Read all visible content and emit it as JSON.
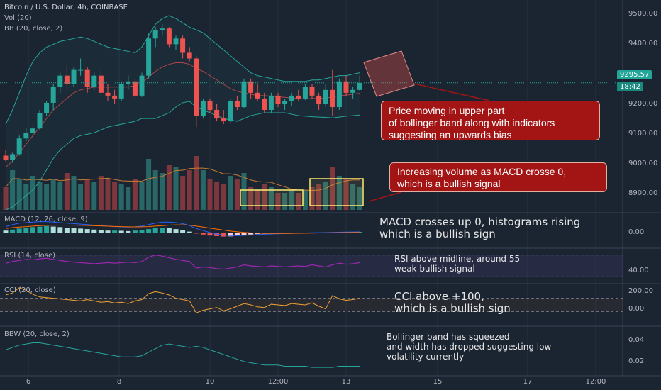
{
  "header": {
    "symbol": "Bitcoin / U.S. Dollar, 4h, COINBASE",
    "vol": "Vol (20)",
    "bb": "BB (20, close, 2)"
  },
  "price_axis": {
    "ticks": [
      "9500.00",
      "9400.00",
      "9200.00",
      "9100.00",
      "9000.00",
      "8900.00"
    ],
    "current_price": "9295.57",
    "countdown": "18:42"
  },
  "panes": {
    "macd": {
      "label": "MACD (12, 26, close, 9)",
      "tick": "0.00"
    },
    "rsi": {
      "label": "RSI (14, close)",
      "tick": "40.00"
    },
    "cci": {
      "label": "CCI (20, close)",
      "ticks": [
        "200.00",
        "0.00"
      ]
    },
    "bbw": {
      "label": "BBW (20, close, 2)",
      "ticks": [
        "0.04",
        "0.02"
      ]
    }
  },
  "time_axis": [
    "6",
    "8",
    "10",
    "12:00",
    "13",
    "15",
    "17",
    "12:00"
  ],
  "annotations": {
    "price": [
      "Price moving in upper part",
      "of bollinger band along with indicators",
      "suggesting an upwards bias"
    ],
    "volume": [
      "Increasing volume as MACD crosse 0,",
      "which is a bullish signal"
    ],
    "macd": [
      "MACD crosses up 0, histograms rising",
      "which is a bullish sign"
    ],
    "rsi": [
      "RSI above midline, around 55",
      "weak bullish signal"
    ],
    "cci": [
      "CCI above +100,",
      "which is a bullish sign"
    ],
    "bbw": [
      "Bollinger band has squeezed",
      "and width has dropped suggesting low",
      "volatility currently"
    ]
  },
  "colors": {
    "background": "#1b2431",
    "up": "#26a69a",
    "down": "#ef5350",
    "bb_band": "#26a69a",
    "bb_basis": "#ef5350",
    "rsi_line": "#9c27b0",
    "cci_line": "#f0a030",
    "callout_bg": "#a31515",
    "highlight": "#ffeb70"
  },
  "chart_data": [
    {
      "type": "candlestick",
      "title": "Bitcoin / U.S. Dollar, 4h, COINBASE",
      "ylim": [
        8850,
        9560
      ],
      "x_ticks": [
        "6",
        "8",
        "10",
        "12:00",
        "13",
        "15",
        "17",
        "12:00"
      ],
      "ohlc": [
        [
          9040,
          9060,
          9020,
          9025
        ],
        [
          9025,
          9050,
          9015,
          9045
        ],
        [
          9045,
          9110,
          9040,
          9100
        ],
        [
          9100,
          9135,
          9090,
          9120
        ],
        [
          9120,
          9145,
          9100,
          9135
        ],
        [
          9135,
          9200,
          9130,
          9190
        ],
        [
          9190,
          9230,
          9180,
          9225
        ],
        [
          9225,
          9290,
          9200,
          9280
        ],
        [
          9280,
          9330,
          9260,
          9320
        ],
        [
          9320,
          9360,
          9270,
          9290
        ],
        [
          9290,
          9350,
          9280,
          9340
        ],
        [
          9340,
          9380,
          9320,
          9340
        ],
        [
          9340,
          9350,
          9260,
          9280
        ],
        [
          9280,
          9330,
          9270,
          9320
        ],
        [
          9320,
          9340,
          9250,
          9260
        ],
        [
          9260,
          9290,
          9230,
          9250
        ],
        [
          9250,
          9270,
          9220,
          9240
        ],
        [
          9240,
          9300,
          9230,
          9290
        ],
        [
          9290,
          9320,
          9270,
          9300
        ],
        [
          9300,
          9310,
          9240,
          9250
        ],
        [
          9250,
          9330,
          9245,
          9320
        ],
        [
          9320,
          9470,
          9310,
          9450
        ],
        [
          9450,
          9490,
          9420,
          9480
        ],
        [
          9480,
          9500,
          9460,
          9485
        ],
        [
          9485,
          9490,
          9420,
          9430
        ],
        [
          9430,
          9460,
          9410,
          9450
        ],
        [
          9450,
          9460,
          9380,
          9400
        ],
        [
          9400,
          9420,
          9370,
          9380
        ],
        [
          9380,
          9390,
          9140,
          9180
        ],
        [
          9180,
          9240,
          9170,
          9230
        ],
        [
          9230,
          9240,
          9190,
          9200
        ],
        [
          9200,
          9220,
          9160,
          9170
        ],
        [
          9170,
          9200,
          9150,
          9160
        ],
        [
          9160,
          9240,
          9155,
          9230
        ],
        [
          9230,
          9250,
          9200,
          9210
        ],
        [
          9210,
          9310,
          9205,
          9300
        ],
        [
          9300,
          9310,
          9240,
          9260
        ],
        [
          9260,
          9290,
          9230,
          9240
        ],
        [
          9240,
          9260,
          9190,
          9200
        ],
        [
          9200,
          9260,
          9190,
          9250
        ],
        [
          9250,
          9260,
          9210,
          9220
        ],
        [
          9220,
          9240,
          9200,
          9230
        ],
        [
          9230,
          9260,
          9215,
          9250
        ],
        [
          9250,
          9270,
          9230,
          9240
        ],
        [
          9240,
          9290,
          9235,
          9280
        ],
        [
          9280,
          9290,
          9240,
          9250
        ],
        [
          9250,
          9260,
          9200,
          9220
        ],
        [
          9220,
          9290,
          9210,
          9270
        ],
        [
          9270,
          9340,
          9180,
          9210
        ],
        [
          9210,
          9310,
          9200,
          9300
        ],
        [
          9300,
          9320,
          9250,
          9260
        ],
        [
          9260,
          9280,
          9240,
          9270
        ],
        [
          9270,
          9320,
          9265,
          9295
        ]
      ],
      "volume": [
        40,
        70,
        55,
        45,
        60,
        50,
        45,
        55,
        50,
        65,
        60,
        45,
        55,
        50,
        60,
        55,
        50,
        45,
        40,
        55,
        50,
        90,
        70,
        65,
        80,
        75,
        60,
        70,
        95,
        70,
        55,
        50,
        45,
        60,
        55,
        65,
        40,
        35,
        45,
        40,
        30,
        30,
        35,
        30,
        35,
        40,
        45,
        50,
        75,
        60,
        55,
        45,
        40
      ],
      "bollinger": {
        "upper": [
          9150,
          9200,
          9260,
          9320,
          9370,
          9400,
          9420,
          9430,
          9440,
          9445,
          9450,
          9455,
          9450,
          9440,
          9430,
          9420,
          9415,
          9410,
          9405,
          9400,
          9420,
          9460,
          9500,
          9520,
          9530,
          9520,
          9505,
          9490,
          9480,
          9470,
          9450,
          9430,
          9410,
          9390,
          9370,
          9350,
          9330,
          9320,
          9315,
          9310,
          9305,
          9300,
          9300,
          9300,
          9300,
          9305,
          9305,
          9310,
          9315,
          9320,
          9320,
          9325,
          9330
        ],
        "basis": [
          9000,
          9020,
          9050,
          9080,
          9110,
          9140,
          9170,
          9200,
          9220,
          9240,
          9260,
          9270,
          9275,
          9280,
          9280,
          9280,
          9280,
          9280,
          9280,
          9285,
          9295,
          9315,
          9335,
          9350,
          9360,
          9365,
          9365,
          9360,
          9345,
          9335,
          9320,
          9305,
          9290,
          9275,
          9265,
          9260,
          9255,
          9250,
          9250,
          9248,
          9246,
          9244,
          9242,
          9240,
          9238,
          9240,
          9240,
          9242,
          9245,
          9250,
          9252,
          9255,
          9258
        ],
        "lower": [
          8850,
          8860,
          8880,
          8900,
          8920,
          8950,
          8990,
          9030,
          9060,
          9080,
          9100,
          9110,
          9115,
          9120,
          9130,
          9140,
          9145,
          9150,
          9155,
          9160,
          9170,
          9170,
          9170,
          9180,
          9190,
          9210,
          9225,
          9230,
          9210,
          9200,
          9190,
          9180,
          9170,
          9165,
          9160,
          9170,
          9180,
          9185,
          9190,
          9190,
          9190,
          9190,
          9185,
          9180,
          9178,
          9176,
          9175,
          9174,
          9172,
          9175,
          9178,
          9180,
          9182
        ]
      }
    },
    {
      "type": "bar",
      "title": "MACD (12, 26, close, 9)",
      "histogram": [
        0.2,
        0.3,
        0.4,
        0.5,
        0.55,
        0.6,
        0.65,
        0.6,
        0.55,
        0.5,
        0.45,
        0.4,
        0.35,
        0.3,
        0.25,
        0.2,
        0.2,
        0.18,
        0.15,
        0.2,
        0.25,
        0.35,
        0.45,
        0.5,
        0.45,
        0.35,
        0.25,
        0.1,
        -0.1,
        -0.2,
        -0.3,
        -0.35,
        -0.4,
        -0.38,
        -0.32,
        -0.25,
        -0.2,
        -0.15,
        -0.12,
        -0.1,
        -0.08,
        -0.06,
        -0.05,
        -0.04,
        -0.03,
        -0.02,
        -0.02,
        0,
        0.02,
        0.04,
        0.05,
        0.06,
        0.07
      ],
      "macd": [
        0.6,
        0.8,
        0.95,
        1.0,
        1.05,
        1.1,
        1.1,
        1.05,
        1.0,
        0.95,
        0.9,
        0.85,
        0.8,
        0.75,
        0.7,
        0.65,
        0.6,
        0.58,
        0.55,
        0.58,
        0.65,
        0.8,
        0.95,
        1.05,
        1.05,
        1.0,
        0.9,
        0.7,
        0.4,
        0.2,
        0.0,
        -0.15,
        -0.25,
        -0.3,
        -0.3,
        -0.28,
        -0.25,
        -0.2,
        -0.17,
        -0.14,
        -0.12,
        -0.1,
        -0.08,
        -0.06,
        -0.04,
        -0.02,
        -0.01,
        0.0,
        0.02,
        0.04,
        0.05,
        0.06,
        0.07
      ],
      "signal": [
        0.4,
        0.5,
        0.55,
        0.6,
        0.65,
        0.7,
        0.72,
        0.74,
        0.75,
        0.75,
        0.74,
        0.73,
        0.71,
        0.69,
        0.67,
        0.64,
        0.62,
        0.6,
        0.58,
        0.57,
        0.58,
        0.6,
        0.65,
        0.7,
        0.75,
        0.78,
        0.78,
        0.75,
        0.65,
        0.55,
        0.45,
        0.35,
        0.25,
        0.15,
        0.08,
        0.02,
        -0.03,
        -0.06,
        -0.08,
        -0.09,
        -0.09,
        -0.09,
        -0.08,
        -0.07,
        -0.06,
        -0.05,
        -0.04,
        -0.03,
        -0.02,
        -0.01,
        0.0,
        0.01,
        0.02
      ]
    },
    {
      "type": "line",
      "title": "RSI (14, close)",
      "ylim": [
        20,
        80
      ],
      "values": [
        55,
        58,
        60,
        62,
        61,
        63,
        64,
        62,
        60,
        58,
        57,
        56,
        55,
        54,
        55,
        56,
        55,
        56,
        57,
        56,
        58,
        66,
        70,
        68,
        65,
        62,
        60,
        58,
        46,
        48,
        47,
        45,
        44,
        46,
        48,
        52,
        50,
        49,
        48,
        50,
        49,
        48,
        49,
        50,
        49,
        52,
        50,
        48,
        52,
        55,
        53,
        54,
        56
      ]
    },
    {
      "type": "line",
      "title": "CCI (20, close)",
      "ylim": [
        -300,
        300
      ],
      "values": [
        150,
        180,
        260,
        220,
        160,
        120,
        110,
        100,
        90,
        80,
        70,
        60,
        80,
        60,
        40,
        50,
        30,
        40,
        20,
        60,
        80,
        170,
        200,
        180,
        150,
        100,
        80,
        60,
        -120,
        -80,
        -60,
        -40,
        -90,
        -60,
        -20,
        20,
        0,
        -30,
        -40,
        10,
        0,
        -10,
        20,
        10,
        0,
        30,
        -20,
        -60,
        140,
        90,
        70,
        80,
        100
      ]
    },
    {
      "type": "line",
      "title": "BBW (20, close, 2)",
      "ylim": [
        0.01,
        0.05
      ],
      "values": [
        0.031,
        0.033,
        0.035,
        0.036,
        0.037,
        0.037,
        0.036,
        0.035,
        0.034,
        0.033,
        0.032,
        0.031,
        0.03,
        0.029,
        0.028,
        0.027,
        0.026,
        0.025,
        0.025,
        0.025,
        0.026,
        0.029,
        0.032,
        0.035,
        0.036,
        0.035,
        0.034,
        0.033,
        0.034,
        0.033,
        0.031,
        0.029,
        0.027,
        0.025,
        0.023,
        0.021,
        0.02,
        0.019,
        0.018,
        0.018,
        0.018,
        0.017,
        0.017,
        0.017,
        0.017,
        0.016,
        0.016,
        0.016,
        0.016,
        0.017,
        0.017,
        0.017,
        0.017
      ]
    }
  ]
}
